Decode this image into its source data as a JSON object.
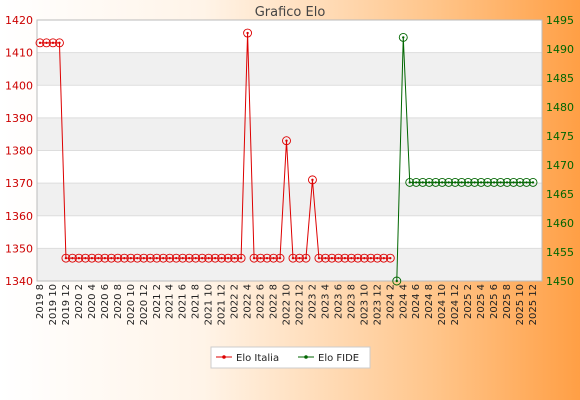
{
  "chart_data": {
    "type": "line",
    "title": "Grafico Elo",
    "x": [
      "2019 8",
      "2019 9",
      "2019 10",
      "2019 11",
      "2019 12",
      "2020 1",
      "2020 2",
      "2020 3",
      "2020 4",
      "2020 5",
      "2020 6",
      "2020 7",
      "2020 8",
      "2020 9",
      "2020 10",
      "2020 11",
      "2020 12",
      "2021 1",
      "2021 2",
      "2021 3",
      "2021 4",
      "2021 5",
      "2021 6",
      "2021 7",
      "2021 8",
      "2021 9",
      "2021 10",
      "2021 11",
      "2021 12",
      "2022 1",
      "2022 2",
      "2022 3",
      "2022 4",
      "2022 5",
      "2022 6",
      "2022 7",
      "2022 8",
      "2022 9",
      "2022 10",
      "2022 11",
      "2022 12",
      "2023 1",
      "2023 2",
      "2023 3",
      "2023 4",
      "2023 5",
      "2023 6",
      "2023 7",
      "2023 8",
      "2023 9",
      "2023 10",
      "2023 11",
      "2023 12",
      "2024 1",
      "2024 2",
      "2024 3",
      "2024 4",
      "2024 5",
      "2024 6",
      "2024 7",
      "2024 8",
      "2024 9",
      "2024 10",
      "2024 11",
      "2024 12",
      "2025 1",
      "2025 2",
      "2025 3",
      "2025 4",
      "2025 5",
      "2025 6",
      "2025 7",
      "2025 8",
      "2025 9",
      "2025 10",
      "2025 11",
      "2025 12"
    ],
    "x_tick_labels": [
      "2019 8",
      "2019 10",
      "2019 12",
      "2020 2",
      "2020 4",
      "2020 6",
      "2020 8",
      "2020 10",
      "2020 12",
      "2021 2",
      "2021 4",
      "2021 6",
      "2021 8",
      "2021 10",
      "2021 12",
      "2022 2",
      "2022 4",
      "2022 6",
      "2022 8",
      "2022 10",
      "2022 12",
      "2023 2",
      "2023 4",
      "2023 6",
      "2023 8",
      "2023 10",
      "2023 12",
      "2024 2",
      "2024 4",
      "2024 6",
      "2024 8",
      "2024 10",
      "2024 12",
      "2025 2",
      "2025 4",
      "2025 6",
      "2025 8",
      "2025 10",
      "2025 12"
    ],
    "y_left": {
      "lim": [
        1340,
        1420
      ],
      "ticks": [
        1340,
        1350,
        1360,
        1370,
        1380,
        1390,
        1400,
        1410,
        1420
      ],
      "color": "#cc0000"
    },
    "y_right": {
      "lim": [
        1450,
        1495
      ],
      "ticks": [
        1450,
        1455,
        1460,
        1465,
        1470,
        1475,
        1480,
        1485,
        1490,
        1495
      ],
      "color": "#006600"
    },
    "grid": true,
    "legend_position": "bottom-center",
    "series": [
      {
        "name": "Elo Italia",
        "axis": "left",
        "color": "#dd0000",
        "values": [
          1413,
          1413,
          1413,
          1413,
          1347,
          1347,
          1347,
          1347,
          1347,
          1347,
          1347,
          1347,
          1347,
          1347,
          1347,
          1347,
          1347,
          1347,
          1347,
          1347,
          1347,
          1347,
          1347,
          1347,
          1347,
          1347,
          1347,
          1347,
          1347,
          1347,
          1347,
          1347,
          1416,
          1347,
          1347,
          1347,
          1347,
          1347,
          1383,
          1347,
          1347,
          1347,
          1371,
          1347,
          1347,
          1347,
          1347,
          1347,
          1347,
          1347,
          1347,
          1347,
          1347,
          1347,
          1347,
          null,
          null,
          null,
          null,
          null,
          null,
          null,
          null,
          null,
          null,
          null,
          null,
          null,
          null,
          null,
          null,
          null,
          null,
          null,
          null,
          null,
          null
        ]
      },
      {
        "name": "Elo FIDE",
        "axis": "right",
        "color": "#006600",
        "values": [
          null,
          null,
          null,
          null,
          null,
          null,
          null,
          null,
          null,
          null,
          null,
          null,
          null,
          null,
          null,
          null,
          null,
          null,
          null,
          null,
          null,
          null,
          null,
          null,
          null,
          null,
          null,
          null,
          null,
          null,
          null,
          null,
          null,
          null,
          null,
          null,
          null,
          null,
          null,
          null,
          null,
          null,
          null,
          null,
          null,
          null,
          null,
          null,
          null,
          null,
          null,
          null,
          null,
          null,
          null,
          1450,
          1492,
          1467,
          1467,
          1467,
          1467,
          1467,
          1467,
          1467,
          1467,
          1467,
          1467,
          1467,
          1467,
          1467,
          1467,
          1467,
          1467,
          1467,
          1467,
          1467,
          1467
        ]
      }
    ]
  }
}
